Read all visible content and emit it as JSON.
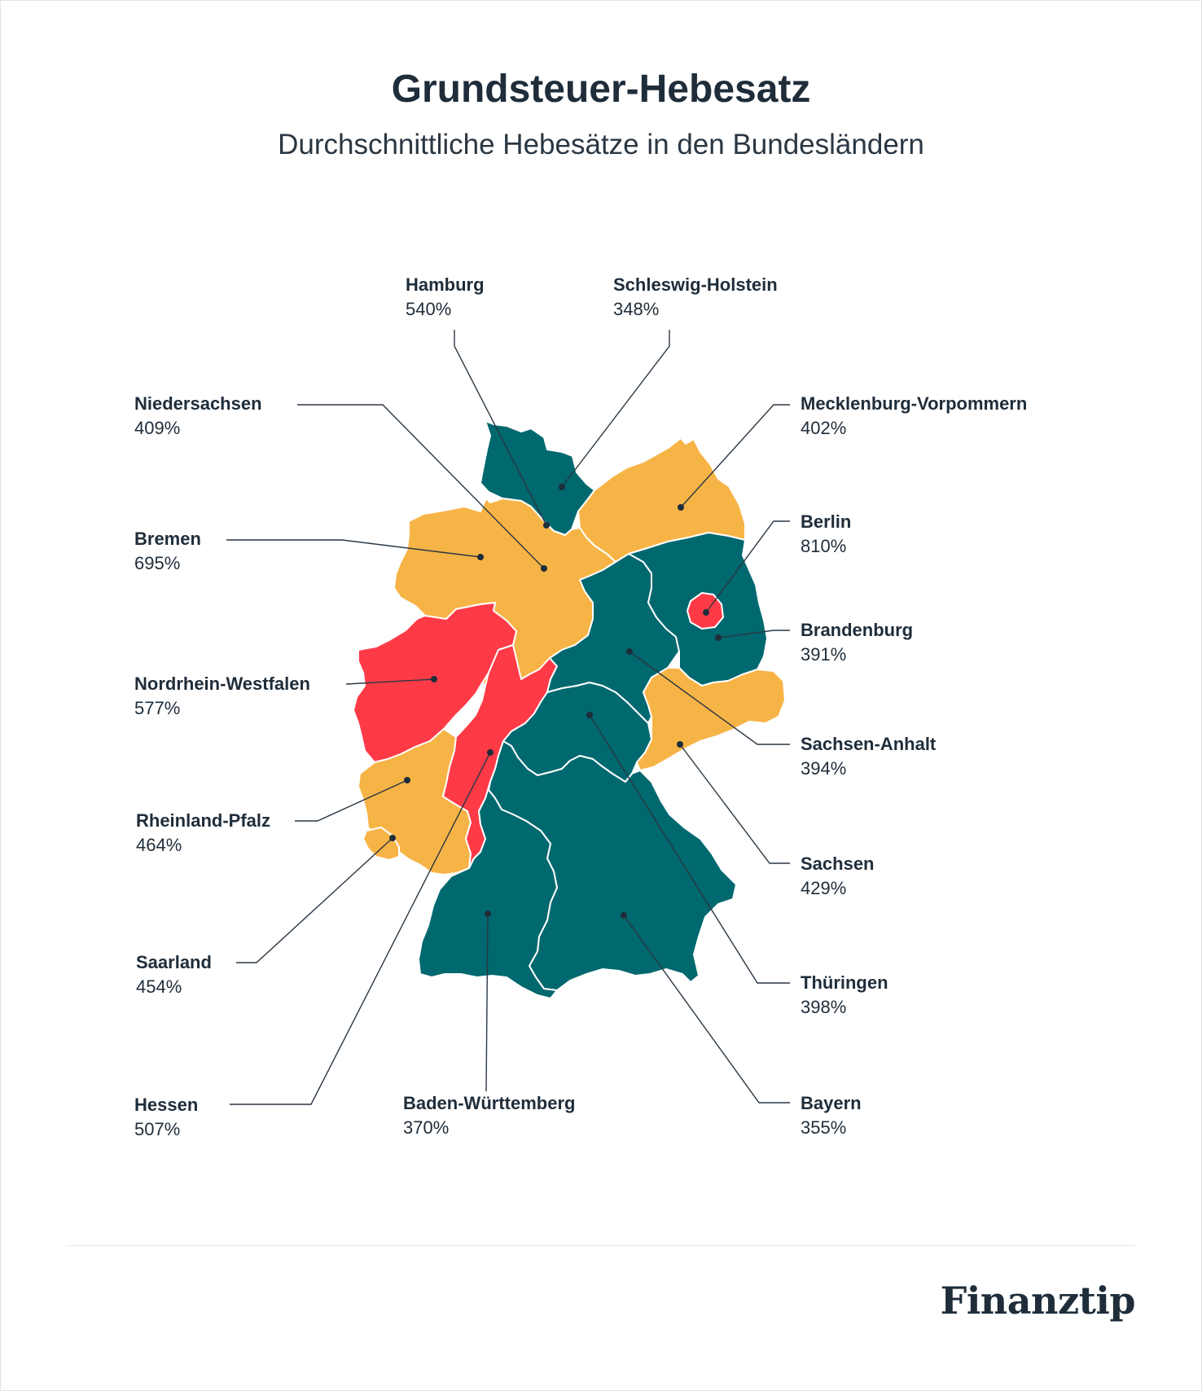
{
  "header": {
    "title": "Grundsteuer-Hebesatz",
    "subtitle": "Durchschnittliche Hebesätze in den Bundesländern"
  },
  "colors": {
    "low": "#00686f",
    "mid": "#f7b446",
    "high": "#ff3a47",
    "text": "#1f2d3a"
  },
  "states": {
    "hamburg": {
      "name": "Hamburg",
      "value": "540%"
    },
    "schleswig_holstein": {
      "name": "Schleswig-Holstein",
      "value": "348%"
    },
    "niedersachsen": {
      "name": "Niedersachsen",
      "value": "409%"
    },
    "mecklenburg_vorpommern": {
      "name": "Mecklenburg-Vorpommern",
      "value": "402%"
    },
    "bremen": {
      "name": "Bremen",
      "value": "695%"
    },
    "berlin": {
      "name": "Berlin",
      "value": "810%"
    },
    "brandenburg": {
      "name": "Brandenburg",
      "value": "391%"
    },
    "nordrhein_westfalen": {
      "name": "Nordrhein-Westfalen",
      "value": "577%"
    },
    "sachsen_anhalt": {
      "name": "Sachsen-Anhalt",
      "value": "394%"
    },
    "rheinland_pfalz": {
      "name": "Rheinland-Pfalz",
      "value": "464%"
    },
    "sachsen": {
      "name": "Sachsen",
      "value": "429%"
    },
    "saarland": {
      "name": "Saarland",
      "value": "454%"
    },
    "thueringen": {
      "name": "Thüringen",
      "value": "398%"
    },
    "hessen": {
      "name": "Hessen",
      "value": "507%"
    },
    "baden_wuerttemberg": {
      "name": "Baden-Württemberg",
      "value": "370%"
    },
    "bayern": {
      "name": "Bayern",
      "value": "355%"
    }
  },
  "logo": "Finanztip"
}
